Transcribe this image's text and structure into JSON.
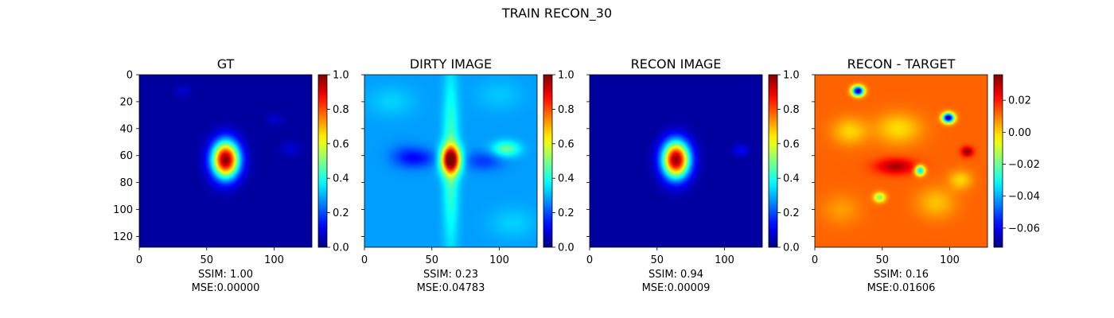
{
  "chart_data": {
    "type": "heatmap",
    "title": "TRAIN RECON_30",
    "panels": [
      {
        "title": "GT",
        "ssim": "SSIM: 1.00",
        "mse": "MSE:0.00000",
        "show_y_ticks": true,
        "x_ticks": [
          0,
          50,
          100
        ],
        "y_ticks": [
          0,
          20,
          40,
          60,
          80,
          100,
          120
        ],
        "extent": [
          128,
          128
        ],
        "colorbar": {
          "vmin": 0.0,
          "vmax": 1.0,
          "ticks": [
            0.0,
            0.2,
            0.4,
            0.6,
            0.8,
            1.0
          ],
          "tick_labels": [
            "0.0",
            "0.2",
            "0.4",
            "0.6",
            "0.8",
            "1.0"
          ]
        },
        "base": 0.03,
        "blobs": [
          {
            "x": 64,
            "y": 63,
            "sx": 7,
            "sy": 9.5,
            "a": 0.97
          },
          {
            "x": 32,
            "y": 12,
            "sx": 4,
            "sy": 3,
            "a": 0.05
          },
          {
            "x": 100,
            "y": 33,
            "sx": 4,
            "sy": 3,
            "a": 0.05
          },
          {
            "x": 112,
            "y": 55,
            "sx": 5,
            "sy": 4,
            "a": 0.05
          }
        ]
      },
      {
        "title": "DIRTY IMAGE",
        "ssim": "SSIM: 0.23",
        "mse": "MSE:0.04783",
        "show_y_ticks": false,
        "x_ticks": [
          0,
          50,
          100
        ],
        "y_ticks": [
          0,
          20,
          40,
          60,
          80,
          100,
          120
        ],
        "extent": [
          128,
          128
        ],
        "colorbar": {
          "vmin": 0.0,
          "vmax": 1.0,
          "ticks": [
            0.0,
            0.2,
            0.4,
            0.6,
            0.8,
            1.0
          ],
          "tick_labels": [
            "0.0",
            "0.2",
            "0.4",
            "0.6",
            "0.8",
            "1.0"
          ]
        },
        "base": 0.28,
        "blobs": [
          {
            "x": 64,
            "y": 63,
            "sx": 5,
            "sy": 7,
            "a": 0.7
          },
          {
            "x": 64,
            "y": 63,
            "sx": 4,
            "sy": 45,
            "a": 0.17
          },
          {
            "x": 105,
            "y": 55,
            "sx": 7,
            "sy": 4,
            "a": 0.2
          },
          {
            "x": 40,
            "y": 62,
            "sx": 10,
            "sy": 5,
            "a": -0.12
          },
          {
            "x": 88,
            "y": 64,
            "sx": 10,
            "sy": 5,
            "a": -0.1
          },
          {
            "x": 30,
            "y": 60,
            "sx": 8,
            "sy": 6,
            "a": -0.06
          },
          {
            "x": 20,
            "y": 20,
            "sx": 12,
            "sy": 8,
            "a": 0.05
          },
          {
            "x": 110,
            "y": 110,
            "sx": 12,
            "sy": 8,
            "a": 0.05
          },
          {
            "x": 100,
            "y": 15,
            "sx": 12,
            "sy": 8,
            "a": 0.04
          }
        ]
      },
      {
        "title": "RECON IMAGE",
        "ssim": "SSIM: 0.94",
        "mse": "MSE:0.00009",
        "show_y_ticks": false,
        "x_ticks": [
          0,
          50,
          100
        ],
        "y_ticks": [
          0,
          20,
          40,
          60,
          80,
          100,
          120
        ],
        "extent": [
          128,
          128
        ],
        "colorbar": {
          "vmin": 0.0,
          "vmax": 1.0,
          "ticks": [
            0.0,
            0.2,
            0.4,
            0.6,
            0.8,
            1.0
          ],
          "tick_labels": [
            "0.0",
            "0.2",
            "0.4",
            "0.6",
            "0.8",
            "1.0"
          ]
        },
        "base": 0.03,
        "blobs": [
          {
            "x": 64,
            "y": 63,
            "sx": 7,
            "sy": 9.5,
            "a": 0.96
          },
          {
            "x": 112,
            "y": 56,
            "sx": 4,
            "sy": 3,
            "a": 0.09
          }
        ]
      },
      {
        "title": "RECON - TARGET",
        "ssim": "SSIM: 0.16",
        "mse": "MSE:0.01606",
        "show_y_ticks": false,
        "x_ticks": [
          0,
          50,
          100
        ],
        "y_ticks": [
          0,
          20,
          40,
          60,
          80,
          100,
          120
        ],
        "extent": [
          128,
          128
        ],
        "colorbar": {
          "vmin": -0.072,
          "vmax": 0.036,
          "ticks": [
            0.02,
            0.0,
            -0.02,
            -0.04,
            -0.06
          ],
          "tick_labels": [
            "0.02",
            "0.00",
            "−0.02",
            "−0.04",
            "−0.06"
          ]
        },
        "base": 0.012,
        "blobs": [
          {
            "x": 32,
            "y": 12,
            "sx": 3,
            "sy": 2.5,
            "a": -0.084
          },
          {
            "x": 99,
            "y": 32,
            "sx": 3,
            "sy": 2.5,
            "a": -0.084
          },
          {
            "x": 78,
            "y": 71,
            "sx": 2.5,
            "sy": 2.5,
            "a": -0.05
          },
          {
            "x": 113,
            "y": 57,
            "sx": 3,
            "sy": 2.5,
            "a": 0.024
          },
          {
            "x": 60,
            "y": 68,
            "sx": 10,
            "sy": 4,
            "a": 0.02
          },
          {
            "x": 48,
            "y": 91,
            "sx": 3,
            "sy": 2.5,
            "a": -0.03
          },
          {
            "x": 62,
            "y": 40,
            "sx": 12,
            "sy": 8,
            "a": -0.013
          },
          {
            "x": 26,
            "y": 42,
            "sx": 9,
            "sy": 7,
            "a": -0.012
          },
          {
            "x": 90,
            "y": 95,
            "sx": 10,
            "sy": 8,
            "a": -0.01
          },
          {
            "x": 108,
            "y": 78,
            "sx": 6,
            "sy": 5,
            "a": -0.012
          },
          {
            "x": 20,
            "y": 100,
            "sx": 10,
            "sy": 8,
            "a": -0.006
          }
        ]
      }
    ]
  }
}
